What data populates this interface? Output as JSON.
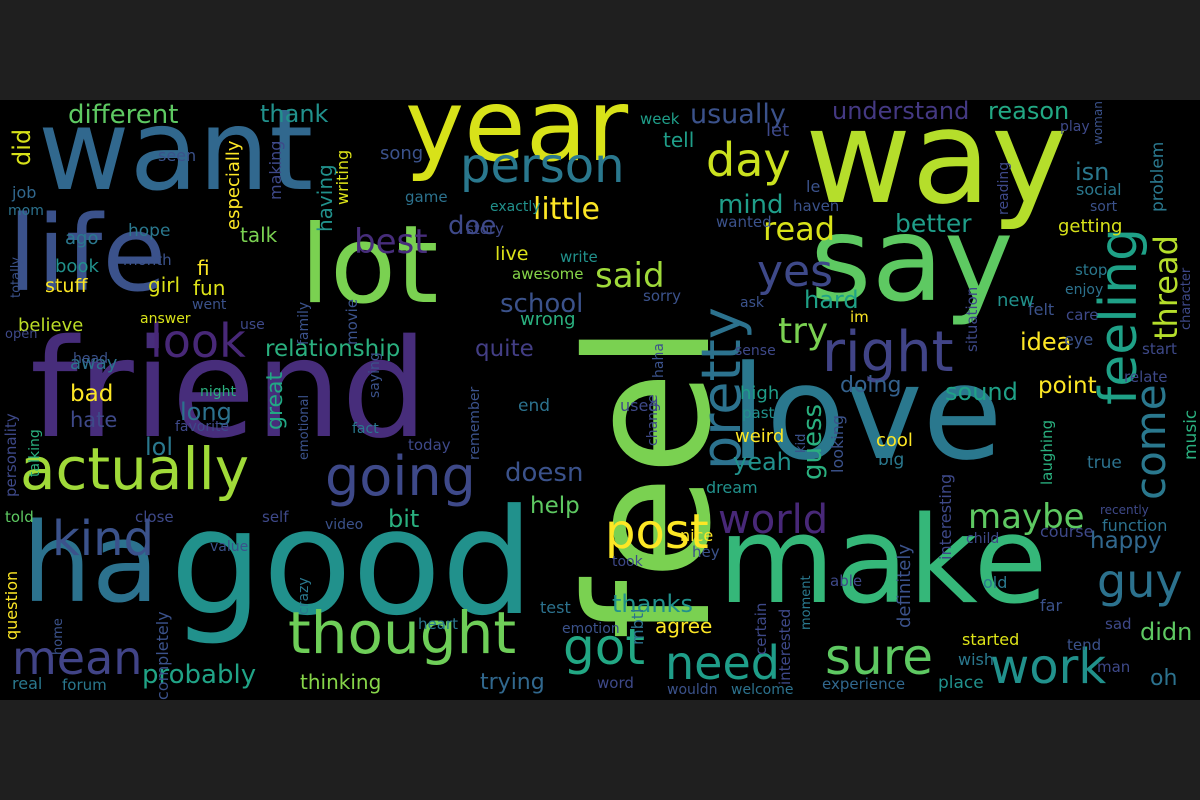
{
  "palette": {
    "background": "#000000",
    "viewer_background": "#1f1f1f",
    "colormap": "viridis"
  },
  "words": [
    {
      "id": "feel",
      "text": "feel",
      "color": "#7ad151"
    },
    {
      "id": "friend",
      "text": "friend",
      "color": "#472d7b"
    },
    {
      "id": "good",
      "text": "good",
      "color": "#21918c"
    },
    {
      "id": "love",
      "text": "love",
      "color": "#2a788e"
    },
    {
      "id": "make",
      "text": "make",
      "color": "#35b779"
    },
    {
      "id": "way",
      "text": "way",
      "color": "#b5de2b"
    },
    {
      "id": "want",
      "text": "want",
      "color": "#31688e"
    },
    {
      "id": "say",
      "text": "say",
      "color": "#5ec962"
    },
    {
      "id": "lot",
      "text": "lot",
      "color": "#7ad151"
    },
    {
      "id": "year",
      "text": "year",
      "color": "#d8e219"
    },
    {
      "id": "life",
      "text": "life",
      "color": "#3b528b"
    },
    {
      "id": "ha",
      "text": "ha",
      "color": "#2c728e"
    },
    {
      "id": "actually",
      "text": "actually",
      "color": "#a0da39"
    },
    {
      "id": "thought",
      "text": "thought",
      "color": "#6ece58"
    },
    {
      "id": "pretty",
      "text": "pretty",
      "color": "#2c728e"
    },
    {
      "id": "feeling",
      "text": "feeling",
      "color": "#1fa187"
    },
    {
      "id": "person",
      "text": "person",
      "color": "#2a788e"
    },
    {
      "id": "right",
      "text": "right",
      "color": "#414487"
    },
    {
      "id": "going",
      "text": "going",
      "color": "#3e4989"
    },
    {
      "id": "look",
      "text": "look",
      "color": "#482878"
    },
    {
      "id": "kind",
      "text": "kind",
      "color": "#3b528b"
    },
    {
      "id": "mean",
      "text": "mean",
      "color": "#414487"
    },
    {
      "id": "day",
      "text": "day",
      "color": "#cae11f"
    },
    {
      "id": "post",
      "text": "post",
      "color": "#fde725"
    },
    {
      "id": "got",
      "text": "got",
      "color": "#22a884"
    },
    {
      "id": "need",
      "text": "need",
      "color": "#1f9e89"
    },
    {
      "id": "sure",
      "text": "sure",
      "color": "#5ec962"
    },
    {
      "id": "work",
      "text": "work",
      "color": "#21918c"
    },
    {
      "id": "world",
      "text": "world",
      "color": "#482878"
    },
    {
      "id": "come",
      "text": "come",
      "color": "#2a788e"
    },
    {
      "id": "guy",
      "text": "guy",
      "color": "#2c728e"
    },
    {
      "id": "yes",
      "text": "yes",
      "color": "#3e4989"
    },
    {
      "id": "best",
      "text": "best",
      "color": "#472d7b"
    },
    {
      "id": "little",
      "text": "little",
      "color": "#fde725"
    },
    {
      "id": "said",
      "text": "said",
      "color": "#9fda3a"
    },
    {
      "id": "thread",
      "text": "thread",
      "color": "#b5de2b"
    },
    {
      "id": "maybe",
      "text": "maybe",
      "color": "#5ec962"
    },
    {
      "id": "try",
      "text": "try",
      "color": "#7ad151"
    },
    {
      "id": "read",
      "text": "read",
      "color": "#d8e219"
    },
    {
      "id": "did",
      "text": "did",
      "color": "#d8e219"
    },
    {
      "id": "different",
      "text": "different",
      "color": "#5ec962"
    },
    {
      "id": "thank",
      "text": "thank",
      "color": "#21918c"
    },
    {
      "id": "usually",
      "text": "usually",
      "color": "#3b528b"
    },
    {
      "id": "understand",
      "text": "understand",
      "color": "#443983"
    },
    {
      "id": "reason",
      "text": "reason",
      "color": "#22a884"
    },
    {
      "id": "relationship",
      "text": "relationship",
      "color": "#2ab07f"
    },
    {
      "id": "quite",
      "text": "quite",
      "color": "#433e85"
    },
    {
      "id": "school",
      "text": "school",
      "color": "#3b528b"
    },
    {
      "id": "doe",
      "text": "doe",
      "color": "#3e4989"
    },
    {
      "id": "mind",
      "text": "mind",
      "color": "#1f9e89"
    },
    {
      "id": "better",
      "text": "better",
      "color": "#1f9e89"
    },
    {
      "id": "hard",
      "text": "hard",
      "color": "#1fa187"
    },
    {
      "id": "sound",
      "text": "sound",
      "color": "#1fa187"
    },
    {
      "id": "idea",
      "text": "idea",
      "color": "#fde725"
    },
    {
      "id": "point",
      "text": "point",
      "color": "#fde725"
    },
    {
      "id": "doing",
      "text": "doing",
      "color": "#34618d"
    },
    {
      "id": "guess",
      "text": "guess",
      "color": "#2ab07f"
    },
    {
      "id": "yeah",
      "text": "yeah",
      "color": "#21918c"
    },
    {
      "id": "doesn",
      "text": "doesn",
      "color": "#3b528b"
    },
    {
      "id": "help",
      "text": "help",
      "color": "#5ec962"
    },
    {
      "id": "bit",
      "text": "bit",
      "color": "#2ab07f"
    },
    {
      "id": "happy",
      "text": "happy",
      "color": "#31688e"
    },
    {
      "id": "didn",
      "text": "didn",
      "color": "#5ec962"
    },
    {
      "id": "oh",
      "text": "oh",
      "color": "#2c728e"
    },
    {
      "id": "thanks",
      "text": "thanks",
      "color": "#21918c"
    },
    {
      "id": "agree",
      "text": "agree",
      "color": "#fde725"
    },
    {
      "id": "probably",
      "text": "probably",
      "color": "#20a386"
    },
    {
      "id": "thinking",
      "text": "thinking",
      "color": "#86d549"
    },
    {
      "id": "trying",
      "text": "trying",
      "color": "#31688e"
    },
    {
      "id": "long",
      "text": "long",
      "color": "#2c728e"
    },
    {
      "id": "great",
      "text": "great",
      "color": "#22a884"
    },
    {
      "id": "lol",
      "text": "lol",
      "color": "#2a788e"
    },
    {
      "id": "bad",
      "text": "bad",
      "color": "#fde725"
    },
    {
      "id": "hate",
      "text": "hate",
      "color": "#3e4989"
    },
    {
      "id": "believe",
      "text": "believe",
      "color": "#bddf26"
    },
    {
      "id": "girl",
      "text": "girl",
      "color": "#dde318"
    },
    {
      "id": "fun",
      "text": "fun",
      "color": "#dde318"
    },
    {
      "id": "fi",
      "text": "fi",
      "color": "#fde725"
    },
    {
      "id": "book",
      "text": "book",
      "color": "#21918c"
    },
    {
      "id": "stuff",
      "text": "stuff",
      "color": "#fde725"
    },
    {
      "id": "talk",
      "text": "talk",
      "color": "#7ad151"
    },
    {
      "id": "ago",
      "text": "ago",
      "color": "#2a788e"
    },
    {
      "id": "hope",
      "text": "hope",
      "color": "#2a788e"
    },
    {
      "id": "job",
      "text": "job",
      "color": "#31688e"
    },
    {
      "id": "mom",
      "text": "mom",
      "color": "#2c728e"
    },
    {
      "id": "seen",
      "text": "seen",
      "color": "#3b528b"
    },
    {
      "id": "song",
      "text": "song",
      "color": "#3b528b"
    },
    {
      "id": "especially",
      "text": "especially",
      "color": "#fde725"
    },
    {
      "id": "making",
      "text": "making",
      "color": "#3e4989"
    },
    {
      "id": "having",
      "text": "having",
      "color": "#21918c"
    },
    {
      "id": "writing",
      "text": "writing",
      "color": "#dde318"
    },
    {
      "id": "month",
      "text": "month",
      "color": "#3b528b"
    },
    {
      "id": "tell",
      "text": "tell",
      "color": "#1f9e89"
    },
    {
      "id": "let",
      "text": "let",
      "color": "#3e4989"
    },
    {
      "id": "week",
      "text": "week",
      "color": "#1f9e89"
    },
    {
      "id": "exactly",
      "text": "exactly",
      "color": "#21918c"
    },
    {
      "id": "game",
      "text": "game",
      "color": "#2c728e"
    },
    {
      "id": "story",
      "text": "story",
      "color": "#3e4989"
    },
    {
      "id": "live",
      "text": "live",
      "color": "#dde318"
    },
    {
      "id": "write",
      "text": "write",
      "color": "#21918c"
    },
    {
      "id": "awesome",
      "text": "awesome",
      "color": "#86d549"
    },
    {
      "id": "wrong",
      "text": "wrong",
      "color": "#2ab07f"
    },
    {
      "id": "sorry",
      "text": "sorry",
      "color": "#3b528b"
    },
    {
      "id": "answer",
      "text": "answer",
      "color": "#d8e219"
    },
    {
      "id": "use",
      "text": "use",
      "color": "#3e4989"
    },
    {
      "id": "went",
      "text": "went",
      "color": "#3b528b"
    },
    {
      "id": "family",
      "text": "family",
      "color": "#3b528b"
    },
    {
      "id": "movie",
      "text": "movie",
      "color": "#3b528b"
    },
    {
      "id": "wanted",
      "text": "wanted",
      "color": "#3b528b"
    },
    {
      "id": "haven",
      "text": "haven",
      "color": "#3b528b"
    },
    {
      "id": "le",
      "text": "le",
      "color": "#3b528b"
    },
    {
      "id": "isn",
      "text": "isn",
      "color": "#2a788e"
    },
    {
      "id": "social",
      "text": "social",
      "color": "#2a788e"
    },
    {
      "id": "sort",
      "text": "sort",
      "color": "#3b528b"
    },
    {
      "id": "reading",
      "text": "reading",
      "color": "#3e4989"
    },
    {
      "id": "play",
      "text": "play",
      "color": "#3e4989"
    },
    {
      "id": "woman",
      "text": "woman",
      "color": "#3b528b"
    },
    {
      "id": "problem",
      "text": "problem",
      "color": "#2a788e"
    },
    {
      "id": "getting",
      "text": "getting",
      "color": "#d8e219"
    },
    {
      "id": "stop",
      "text": "stop",
      "color": "#2a788e"
    },
    {
      "id": "enjoy",
      "text": "enjoy",
      "color": "#2c728e"
    },
    {
      "id": "felt",
      "text": "felt",
      "color": "#3b528b"
    },
    {
      "id": "care",
      "text": "care",
      "color": "#3e4989"
    },
    {
      "id": "character",
      "text": "character",
      "color": "#3e4989"
    },
    {
      "id": "new",
      "text": "new",
      "color": "#21918c"
    },
    {
      "id": "situation",
      "text": "situation",
      "color": "#3e4989"
    },
    {
      "id": "im",
      "text": "im",
      "color": "#fde725"
    },
    {
      "id": "ask",
      "text": "ask",
      "color": "#3b528b"
    },
    {
      "id": "sense",
      "text": "sense",
      "color": "#3e4989"
    },
    {
      "id": "high",
      "text": "high",
      "color": "#1f9e89"
    },
    {
      "id": "past",
      "text": "past",
      "color": "#21918c"
    },
    {
      "id": "start",
      "text": "start",
      "color": "#3e4989"
    },
    {
      "id": "relate",
      "text": "relate",
      "color": "#3e4989"
    },
    {
      "id": "eye",
      "text": "eye",
      "color": "#3b528b"
    },
    {
      "id": "true",
      "text": "true",
      "color": "#2c728e"
    },
    {
      "id": "music",
      "text": "music",
      "color": "#2ab07f"
    },
    {
      "id": "laughing",
      "text": "laughing",
      "color": "#2ab07f"
    },
    {
      "id": "recently",
      "text": "recently",
      "color": "#3e4989"
    },
    {
      "id": "function",
      "text": "function",
      "color": "#2c728e"
    },
    {
      "id": "course",
      "text": "course",
      "color": "#3e4989"
    },
    {
      "id": "child",
      "text": "child",
      "color": "#3e4989"
    },
    {
      "id": "cool",
      "text": "cool",
      "color": "#fde725"
    },
    {
      "id": "big",
      "text": "big",
      "color": "#2a788e"
    },
    {
      "id": "weird",
      "text": "weird",
      "color": "#fde725"
    },
    {
      "id": "kid",
      "text": "kid",
      "color": "#3b528b"
    },
    {
      "id": "looking",
      "text": "looking",
      "color": "#3b528b"
    },
    {
      "id": "interesting",
      "text": "interesting",
      "color": "#3e4989"
    },
    {
      "id": "dream",
      "text": "dream",
      "color": "#21918c"
    },
    {
      "id": "definitely",
      "text": "definitely",
      "color": "#3b528b"
    },
    {
      "id": "able",
      "text": "able",
      "color": "#3e4989"
    },
    {
      "id": "old",
      "text": "old",
      "color": "#2a788e"
    },
    {
      "id": "far",
      "text": "far",
      "color": "#3b528b"
    },
    {
      "id": "started",
      "text": "started",
      "color": "#dde318"
    },
    {
      "id": "tend",
      "text": "tend",
      "color": "#3b528b"
    },
    {
      "id": "sad",
      "text": "sad",
      "color": "#3e4989"
    },
    {
      "id": "man",
      "text": "man",
      "color": "#3e4989"
    },
    {
      "id": "wish",
      "text": "wish",
      "color": "#2a788e"
    },
    {
      "id": "place",
      "text": "place",
      "color": "#21918c"
    },
    {
      "id": "experience",
      "text": "experience",
      "color": "#31688e"
    },
    {
      "id": "moment",
      "text": "moment",
      "color": "#2a788e"
    },
    {
      "id": "interested",
      "text": "interested",
      "color": "#3e4989"
    },
    {
      "id": "certain",
      "text": "certain",
      "color": "#3e4989"
    },
    {
      "id": "hey",
      "text": "hey",
      "color": "#3b528b"
    },
    {
      "id": "nice",
      "text": "nice",
      "color": "#fde725"
    },
    {
      "id": "took",
      "text": "took",
      "color": "#3e4989"
    },
    {
      "id": "test",
      "text": "test",
      "color": "#2c728e"
    },
    {
      "id": "mbti",
      "text": "mbti",
      "color": "#2c728e"
    },
    {
      "id": "emotion",
      "text": "emotion",
      "color": "#3b528b"
    },
    {
      "id": "word",
      "text": "word",
      "color": "#3e4989"
    },
    {
      "id": "wouldn",
      "text": "wouldn",
      "color": "#3b528b"
    },
    {
      "id": "welcome",
      "text": "welcome",
      "color": "#2c728e"
    },
    {
      "id": "heart",
      "text": "heart",
      "color": "#2a788e"
    },
    {
      "id": "crazy",
      "text": "crazy",
      "color": "#2a788e"
    },
    {
      "id": "video",
      "text": "video",
      "color": "#3b528b"
    },
    {
      "id": "self",
      "text": "self",
      "color": "#3e4989"
    },
    {
      "id": "value",
      "text": "value",
      "color": "#3b528b"
    },
    {
      "id": "close",
      "text": "close",
      "color": "#3e4989"
    },
    {
      "id": "completely",
      "text": "completely",
      "color": "#3b528b"
    },
    {
      "id": "question",
      "text": "question",
      "color": "#fde725"
    },
    {
      "id": "told",
      "text": "told",
      "color": "#5ec962"
    },
    {
      "id": "home",
      "text": "home",
      "color": "#3b528b"
    },
    {
      "id": "real",
      "text": "real",
      "color": "#2a788e"
    },
    {
      "id": "forum",
      "text": "forum",
      "color": "#2a788e"
    },
    {
      "id": "personality",
      "text": "personality",
      "color": "#3e4989"
    },
    {
      "id": "talking",
      "text": "talking",
      "color": "#2ab07f"
    },
    {
      "id": "away",
      "text": "away",
      "color": "#2c728e"
    },
    {
      "id": "head",
      "text": "head",
      "color": "#3b528b"
    },
    {
      "id": "open",
      "text": "open",
      "color": "#3e4989"
    },
    {
      "id": "totally",
      "text": "totally",
      "color": "#3b528b"
    },
    {
      "id": "night",
      "text": "night",
      "color": "#2ab07f"
    },
    {
      "id": "favorite",
      "text": "favorite",
      "color": "#3e4989"
    },
    {
      "id": "emotional",
      "text": "emotional",
      "color": "#3b528b"
    },
    {
      "id": "saying",
      "text": "saying",
      "color": "#3b528b"
    },
    {
      "id": "fact",
      "text": "fact",
      "color": "#2a788e"
    },
    {
      "id": "today",
      "text": "today",
      "color": "#3e4989"
    },
    {
      "id": "end",
      "text": "end",
      "color": "#2c728e"
    },
    {
      "id": "remember",
      "text": "remember",
      "color": "#3b528b"
    },
    {
      "id": "used",
      "text": "used",
      "color": "#3e4989"
    },
    {
      "id": "change",
      "text": "change",
      "color": "#3e4989"
    },
    {
      "id": "haha",
      "text": "haha",
      "color": "#3b528b"
    }
  ]
}
